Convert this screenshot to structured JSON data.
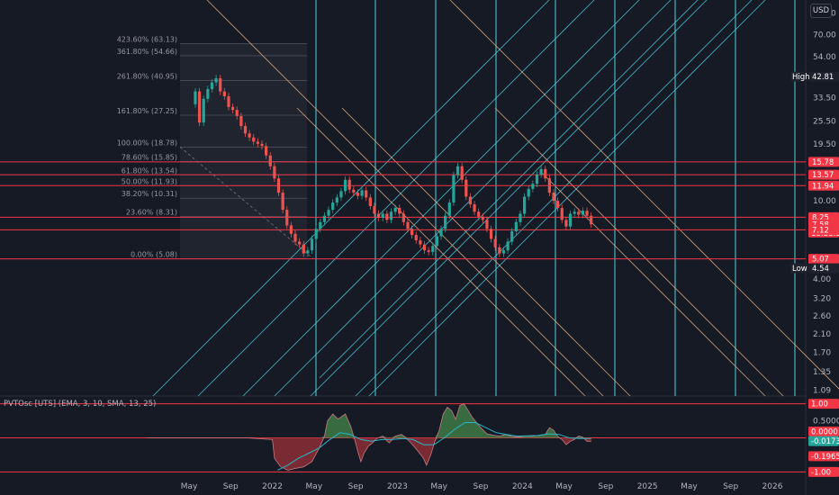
{
  "currency": "USD",
  "colors": {
    "background": "#161a25",
    "up": "#26a69a",
    "down": "#ef5350",
    "level_line": "#f23645",
    "cyan": "#4fd1e0",
    "orange": "#e8b48c",
    "fib_fill": "#2a2e39",
    "osc_green": "#3f7a45",
    "osc_red": "#8b2e35",
    "signal": "#29b6c8"
  },
  "price_axis": {
    "ticks": [
      "90.00",
      "70.00",
      "54.00",
      "42.00",
      "33.50",
      "25.50",
      "19.50",
      "10.00",
      "4.00",
      "3.20",
      "2.60",
      "2.10",
      "1.70",
      "1.35",
      "1.09"
    ],
    "tick_values": [
      90,
      70,
      54,
      42,
      33.5,
      25.5,
      19.5,
      10,
      4,
      3.2,
      2.6,
      2.1,
      1.7,
      1.35,
      1.09
    ],
    "log_scale": true,
    "range": [
      1.09,
      100
    ]
  },
  "price_badges": [
    {
      "value": 42.81,
      "text": "42.81",
      "color": "#1e222d",
      "tag": "High"
    },
    {
      "value": 15.78,
      "text": "15.78",
      "color": "#f23645"
    },
    {
      "value": 13.57,
      "text": "13.57",
      "color": "#f23645"
    },
    {
      "value": 11.94,
      "text": "11.94",
      "color": "#f23645"
    },
    {
      "value": 8.25,
      "text": "8.25",
      "color": "#f23645"
    },
    {
      "value": 7.58,
      "text": "7.58",
      "color": "#f23645",
      "sub": "18:28:56"
    },
    {
      "value": 7.12,
      "text": "7.12",
      "color": "#f23645"
    },
    {
      "value": 5.07,
      "text": "5.07",
      "color": "#f23645"
    },
    {
      "value": 4.54,
      "text": "4.54",
      "color": "#1e222d",
      "tag": "Low"
    }
  ],
  "horizontal_levels": [
    15.78,
    13.57,
    11.94,
    8.25,
    7.12,
    5.07
  ],
  "fib_levels": [
    {
      "label": "423.60% (63.13)",
      "value": 63.13
    },
    {
      "label": "361.80% (54.66)",
      "value": 54.66
    },
    {
      "label": "261.80% (40.95)",
      "value": 40.95
    },
    {
      "label": "161.80% (27.25)",
      "value": 27.25
    },
    {
      "label": "100.00% (18.78)",
      "value": 18.78
    },
    {
      "label": "78.60% (15.85)",
      "value": 15.85
    },
    {
      "label": "61.80% (13.54)",
      "value": 13.54
    },
    {
      "label": "50.00% (11.93)",
      "value": 11.93
    },
    {
      "label": "38.20% (10.31)",
      "value": 10.31
    },
    {
      "label": "23.60% (8.31)",
      "value": 8.31
    },
    {
      "label": "0.00% (5.08)",
      "value": 5.08
    }
  ],
  "time_axis": {
    "labels": [
      "May",
      "Sep",
      "2022",
      "May",
      "Sep",
      "2023",
      "May",
      "Sep",
      "2024",
      "May",
      "Sep",
      "2025",
      "May",
      "Sep",
      "2026"
    ],
    "positions_months": [
      4,
      8,
      12,
      16,
      20,
      24,
      28,
      32,
      36,
      40,
      44,
      48,
      52,
      56,
      60
    ]
  },
  "oscillator": {
    "title": "PVTOsc [UTS] (EMA, 3, 10, SMA, 13, 25)",
    "ticks": [
      "0.5000",
      "-0.5000"
    ],
    "tick_values": [
      0.5,
      -0.5
    ],
    "badges": [
      {
        "value": 1.0,
        "text": "1.00",
        "color": "#f23645"
      },
      {
        "value": 0.0,
        "text": "0.0000",
        "color": "#f23645"
      },
      {
        "value": -0.0173,
        "text": "-0.0173",
        "color": "#26a69a"
      },
      {
        "value": -0.1965,
        "text": "-0.1965",
        "color": "#f23645"
      },
      {
        "value": -1.0,
        "text": "-1.00",
        "color": "#f23645"
      }
    ],
    "levels": [
      1.0,
      0.0,
      -1.0
    ],
    "range": [
      -1.15,
      1.15
    ]
  },
  "chart_data": {
    "type": "candlestick",
    "y_scale": "log",
    "x_unit": "months since Jan 2021",
    "price_series": [
      [
        4.2,
        31
      ],
      [
        4.6,
        36
      ],
      [
        5.0,
        25
      ],
      [
        5.4,
        33
      ],
      [
        5.8,
        37
      ],
      [
        6.2,
        40
      ],
      [
        6.6,
        42
      ],
      [
        7.0,
        36
      ],
      [
        7.4,
        34
      ],
      [
        7.8,
        30
      ],
      [
        8.2,
        29
      ],
      [
        8.6,
        27
      ],
      [
        9.0,
        24
      ],
      [
        9.4,
        22
      ],
      [
        9.8,
        21
      ],
      [
        10.2,
        20
      ],
      [
        10.6,
        19.5
      ],
      [
        11.0,
        19
      ],
      [
        11.4,
        17
      ],
      [
        11.8,
        15
      ],
      [
        12.2,
        13
      ],
      [
        12.6,
        11
      ],
      [
        13.0,
        9
      ],
      [
        13.4,
        7.5
      ],
      [
        13.8,
        6.8
      ],
      [
        14.2,
        6.2
      ],
      [
        14.6,
        6.0
      ],
      [
        15.0,
        5.4
      ],
      [
        15.4,
        5.6
      ],
      [
        15.8,
        6.4
      ],
      [
        16.2,
        7.2
      ],
      [
        16.6,
        7.8
      ],
      [
        17.0,
        8.4
      ],
      [
        17.4,
        9.0
      ],
      [
        17.8,
        9.8
      ],
      [
        18.2,
        10.4
      ],
      [
        18.6,
        11.2
      ],
      [
        19.0,
        12.8
      ],
      [
        19.4,
        11.4
      ],
      [
        19.8,
        11.0
      ],
      [
        20.2,
        10.6
      ],
      [
        20.6,
        11.3
      ],
      [
        21.0,
        10.4
      ],
      [
        21.4,
        9.4
      ],
      [
        21.8,
        8.6
      ],
      [
        22.2,
        8.2
      ],
      [
        22.6,
        8.6
      ],
      [
        23.0,
        8.0
      ],
      [
        23.4,
        8.8
      ],
      [
        23.8,
        9.2
      ],
      [
        24.2,
        8.6
      ],
      [
        24.6,
        7.8
      ],
      [
        25.0,
        7.2
      ],
      [
        25.4,
        6.7
      ],
      [
        25.8,
        6.3
      ],
      [
        26.2,
        6.0
      ],
      [
        26.6,
        5.6
      ],
      [
        27.0,
        5.5
      ],
      [
        27.4,
        5.9
      ],
      [
        27.8,
        6.6
      ],
      [
        28.2,
        7.2
      ],
      [
        28.6,
        8.4
      ],
      [
        29.0,
        9.8
      ],
      [
        29.4,
        13.5
      ],
      [
        29.8,
        15.0
      ],
      [
        30.2,
        12.8
      ],
      [
        30.6,
        10.5
      ],
      [
        31.0,
        9.6
      ],
      [
        31.4,
        8.8
      ],
      [
        31.8,
        8.3
      ],
      [
        32.2,
        8.0
      ],
      [
        32.6,
        7.2
      ],
      [
        33.0,
        6.4
      ],
      [
        33.4,
        5.8
      ],
      [
        33.8,
        5.4
      ],
      [
        34.2,
        5.6
      ],
      [
        34.6,
        6.2
      ],
      [
        35.0,
        7.0
      ],
      [
        35.4,
        7.8
      ],
      [
        35.8,
        8.6
      ],
      [
        36.2,
        10.5
      ],
      [
        36.6,
        11.5
      ],
      [
        37.0,
        12.2
      ],
      [
        37.4,
        13.6
      ],
      [
        37.8,
        14.5
      ],
      [
        38.2,
        13.0
      ],
      [
        38.6,
        11.0
      ],
      [
        39.0,
        10.0
      ],
      [
        39.4,
        9.2
      ],
      [
        39.8,
        8.0
      ],
      [
        40.2,
        7.4
      ],
      [
        40.6,
        8.6
      ],
      [
        41.0,
        8.8
      ],
      [
        41.4,
        8.5
      ],
      [
        41.8,
        8.9
      ],
      [
        42.2,
        8.4
      ],
      [
        42.6,
        7.6
      ]
    ],
    "oscillator_series": [
      [
        0,
        0
      ],
      [
        0.3,
        0
      ],
      [
        2.0,
        0
      ],
      [
        5.0,
        0
      ],
      [
        9.5,
        0
      ],
      [
        12.0,
        -0.05
      ],
      [
        12.2,
        -0.6
      ],
      [
        12.8,
        -0.85
      ],
      [
        13.5,
        -0.95
      ],
      [
        14.2,
        -0.9
      ],
      [
        15.0,
        -0.85
      ],
      [
        15.8,
        -0.7
      ],
      [
        16.5,
        -0.3
      ],
      [
        17.0,
        0.05
      ],
      [
        17.3,
        0.5
      ],
      [
        17.8,
        0.7
      ],
      [
        18.3,
        0.55
      ],
      [
        19.0,
        0.7
      ],
      [
        19.5,
        0.35
      ],
      [
        19.9,
        -0.05
      ],
      [
        20.2,
        -0.4
      ],
      [
        20.5,
        -0.7
      ],
      [
        20.8,
        -0.45
      ],
      [
        21.2,
        -0.25
      ],
      [
        21.6,
        -0.15
      ],
      [
        22.0,
        -0.02
      ],
      [
        22.6,
        0.05
      ],
      [
        23.2,
        -0.15
      ],
      [
        23.8,
        0.05
      ],
      [
        24.4,
        0.1
      ],
      [
        25.0,
        -0.05
      ],
      [
        25.6,
        -0.25
      ],
      [
        26.0,
        -0.4
      ],
      [
        26.5,
        -0.6
      ],
      [
        26.8,
        -0.8
      ],
      [
        27.2,
        -0.5
      ],
      [
        27.6,
        -0.1
      ],
      [
        28.0,
        0.2
      ],
      [
        28.4,
        0.7
      ],
      [
        28.8,
        0.9
      ],
      [
        29.2,
        0.8
      ],
      [
        29.6,
        0.55
      ],
      [
        30.0,
        0.95
      ],
      [
        30.4,
        1.0
      ],
      [
        30.8,
        0.8
      ],
      [
        31.2,
        0.6
      ],
      [
        31.6,
        0.45
      ],
      [
        32.0,
        0.3
      ],
      [
        32.6,
        0.12
      ],
      [
        33.2,
        0.08
      ],
      [
        33.8,
        0.05
      ],
      [
        34.4,
        0.1
      ],
      [
        35.0,
        0.04
      ],
      [
        35.6,
        0.02
      ],
      [
        36.2,
        0.05
      ],
      [
        37.0,
        0.05
      ],
      [
        37.6,
        0.07
      ],
      [
        38.2,
        0.1
      ],
      [
        38.6,
        0.3
      ],
      [
        39.0,
        0.22
      ],
      [
        39.4,
        0.04
      ],
      [
        39.8,
        -0.05
      ],
      [
        40.2,
        -0.2
      ],
      [
        40.6,
        -0.1
      ],
      [
        41.0,
        -0.05
      ],
      [
        41.4,
        0.05
      ],
      [
        41.8,
        0.02
      ],
      [
        42.2,
        -0.1
      ],
      [
        42.6,
        -0.1
      ]
    ],
    "signal_series": [
      [
        12.5,
        -0.95
      ],
      [
        13.5,
        -0.8
      ],
      [
        14.5,
        -0.6
      ],
      [
        15.5,
        -0.45
      ],
      [
        16.5,
        -0.3
      ],
      [
        17.5,
        -0.05
      ],
      [
        18.5,
        0.15
      ],
      [
        19.5,
        0.1
      ],
      [
        20.5,
        -0.05
      ],
      [
        21.5,
        -0.1
      ],
      [
        22.5,
        -0.05
      ],
      [
        23.5,
        -0.05
      ],
      [
        24.5,
        -0.02
      ],
      [
        25.5,
        -0.05
      ],
      [
        26.5,
        -0.2
      ],
      [
        27.5,
        -0.2
      ],
      [
        28.5,
        0.0
      ],
      [
        29.5,
        0.25
      ],
      [
        30.5,
        0.45
      ],
      [
        31.5,
        0.45
      ],
      [
        32.5,
        0.3
      ],
      [
        33.5,
        0.15
      ],
      [
        34.5,
        0.1
      ],
      [
        35.5,
        0.05
      ],
      [
        36.5,
        0.06
      ],
      [
        37.5,
        0.07
      ],
      [
        38.5,
        0.12
      ],
      [
        39.5,
        0.1
      ],
      [
        40.5,
        0.0
      ],
      [
        41.5,
        -0.02
      ],
      [
        42.6,
        -0.02
      ]
    ]
  }
}
